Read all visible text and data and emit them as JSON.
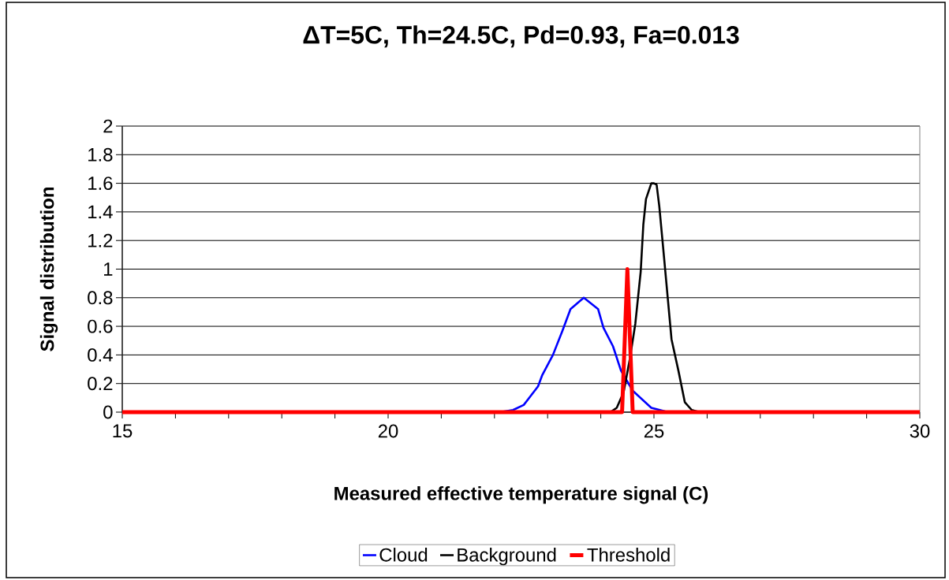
{
  "chart_data": {
    "type": "line",
    "title": "ΔT=5C, Th=24.5C, Pd=0.93, Fa=0.013",
    "xlabel": "Measured effective temperature signal (C)",
    "ylabel": "Signal distribution",
    "series": [
      {
        "name": "Cloud",
        "color": "#0000ff",
        "x": [
          22.1,
          22.35,
          22.55,
          22.82,
          22.9,
          23.1,
          23.28,
          23.43,
          23.68,
          23.95,
          24.05,
          24.23,
          24.38,
          24.6,
          24.95,
          25.21
        ],
        "values": [
          0,
          0.015,
          0.05,
          0.18,
          0.26,
          0.4,
          0.57,
          0.72,
          0.8,
          0.72,
          0.59,
          0.46,
          0.29,
          0.15,
          0.03,
          0.005
        ]
      },
      {
        "name": "Background",
        "color": "#000000",
        "x": [
          24.2,
          24.3,
          24.43,
          24.55,
          24.65,
          24.75,
          24.8,
          24.85,
          24.95,
          25.0,
          25.05,
          25.1,
          25.18,
          25.33,
          25.46,
          25.58,
          25.71,
          25.86
        ],
        "values": [
          0.005,
          0.03,
          0.14,
          0.38,
          0.62,
          0.98,
          1.31,
          1.49,
          1.6,
          1.6,
          1.59,
          1.44,
          1.12,
          0.51,
          0.29,
          0.07,
          0.015,
          0
        ]
      },
      {
        "name": "Threshold",
        "color": "#ff0000",
        "x": [
          15,
          24.4,
          24.5,
          24.6,
          30
        ],
        "values": [
          0,
          0,
          1,
          0,
          0
        ]
      }
    ],
    "xlim": [
      15,
      30
    ],
    "ylim": [
      0,
      2
    ],
    "xticks": [
      15,
      {
        "value": 16,
        "label": null
      },
      {
        "value": 17,
        "label": null
      },
      {
        "value": 18,
        "label": null
      },
      {
        "value": 19,
        "label": null
      },
      20,
      {
        "value": 21,
        "label": null
      },
      {
        "value": 22,
        "label": null
      },
      {
        "value": 23,
        "label": null
      },
      {
        "value": 24,
        "label": null
      },
      25,
      {
        "value": 26,
        "label": null
      },
      {
        "value": 27,
        "label": null
      },
      {
        "value": 28,
        "label": null
      },
      {
        "value": 29,
        "label": null
      },
      30
    ],
    "yticks": [
      0,
      0.2,
      0.4,
      0.6,
      0.8,
      1,
      1.2,
      1.4,
      1.6,
      1.8,
      2
    ],
    "grid": "y",
    "legend": "bottom"
  }
}
